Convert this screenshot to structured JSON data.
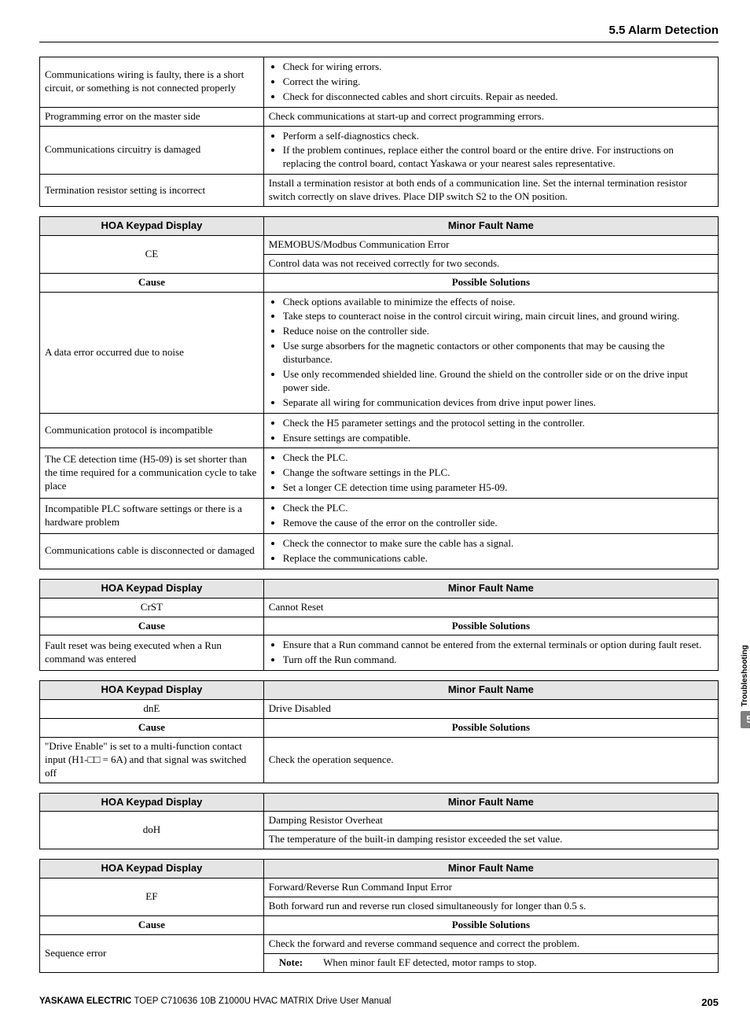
{
  "header": {
    "section_title": "5.5 Alarm Detection"
  },
  "side": {
    "label": "Troubleshooting",
    "chapter": "5"
  },
  "footer": {
    "brand": "YASKAWA ELECTRIC",
    "doc": "TOEP C710636 10B Z1000U HVAC MATRIX Drive User Manual",
    "page": "205"
  },
  "labels": {
    "hoa": "HOA Keypad Display",
    "minor": "Minor Fault Name",
    "cause": "Cause",
    "solutions": "Possible Solutions",
    "note": "Note:"
  },
  "table1": {
    "r1c1": "Communications wiring is faulty, there is a short circuit, or something is not connected properly",
    "r1l1": "Check for wiring errors.",
    "r1l2": "Correct the wiring.",
    "r1l3": "Check for disconnected cables and short circuits. Repair as needed.",
    "r2c1": "Programming error on the master side",
    "r2c2": "Check communications at start-up and correct programming errors.",
    "r3c1": "Communications circuitry is damaged",
    "r3l1": "Perform a self-diagnostics check.",
    "r3l2": "If the problem continues, replace either the control board or the entire drive. For instructions on replacing the control board, contact Yaskawa or your nearest sales representative.",
    "r4c1": "Termination resistor setting is incorrect",
    "r4c2": "Install a termination resistor at both ends of a communication line. Set the internal termination resistor switch correctly on slave drives. Place DIP switch S2 to the ON position."
  },
  "table2": {
    "code": "CE",
    "name": "MEMOBUS/Modbus Communication Error",
    "desc": "Control data was not received correctly for two seconds.",
    "r1c1": "A data error occurred due to noise",
    "r1l1": "Check options available to minimize the effects of noise.",
    "r1l2": "Take steps to counteract noise in the control circuit wiring, main circuit lines, and ground wiring.",
    "r1l3": "Reduce noise on the controller side.",
    "r1l4": "Use surge absorbers for the magnetic contactors or other components that may be causing the disturbance.",
    "r1l5": "Use only recommended shielded line. Ground the shield on the controller side or on the drive input power side.",
    "r1l6": "Separate all wiring for communication devices from drive input power lines.",
    "r2c1": "Communication protocol is incompatible",
    "r2l1": "Check the H5 parameter settings and the protocol setting in the controller.",
    "r2l2": "Ensure settings are compatible.",
    "r3c1": "The CE detection time (H5-09) is set shorter than the time required for a communication cycle to take place",
    "r3l1": "Check the PLC.",
    "r3l2": "Change the software settings in the PLC.",
    "r3l3": "Set a longer CE detection time using parameter H5-09.",
    "r4c1": "Incompatible PLC software settings or there is a hardware problem",
    "r4l1": "Check the PLC.",
    "r4l2": "Remove the cause of the error on the controller side.",
    "r5c1": "Communications cable is disconnected or damaged",
    "r5l1": "Check the connector to make sure the cable has a signal.",
    "r5l2": "Replace the communications cable."
  },
  "table3": {
    "code": "CrST",
    "name": "Cannot Reset",
    "r1c1": "Fault reset was being executed when a Run command was entered",
    "r1l1": "Ensure that a Run command cannot be entered from the external terminals or option during fault reset.",
    "r1l2": "Turn off the Run command."
  },
  "table4": {
    "code": "dnE",
    "name": "Drive Disabled",
    "r1c1": "\"Drive Enable\" is set to a multi-function contact input (H1-□□ = 6A) and that signal was switched off",
    "r1c2": "Check the operation sequence."
  },
  "table5": {
    "code": "doH",
    "name": "Damping Resistor Overheat",
    "desc": "The temperature of the built-in damping resistor exceeded the set value."
  },
  "table6": {
    "code": "EF",
    "name": "Forward/Reverse Run Command Input Error",
    "desc": "Both forward run and reverse run closed simultaneously for longer than 0.5 s.",
    "r1c1": "Sequence error",
    "r1c2": "Check the forward and reverse command sequence and correct the problem.",
    "note_text": "When minor fault EF detected, motor ramps to stop."
  }
}
